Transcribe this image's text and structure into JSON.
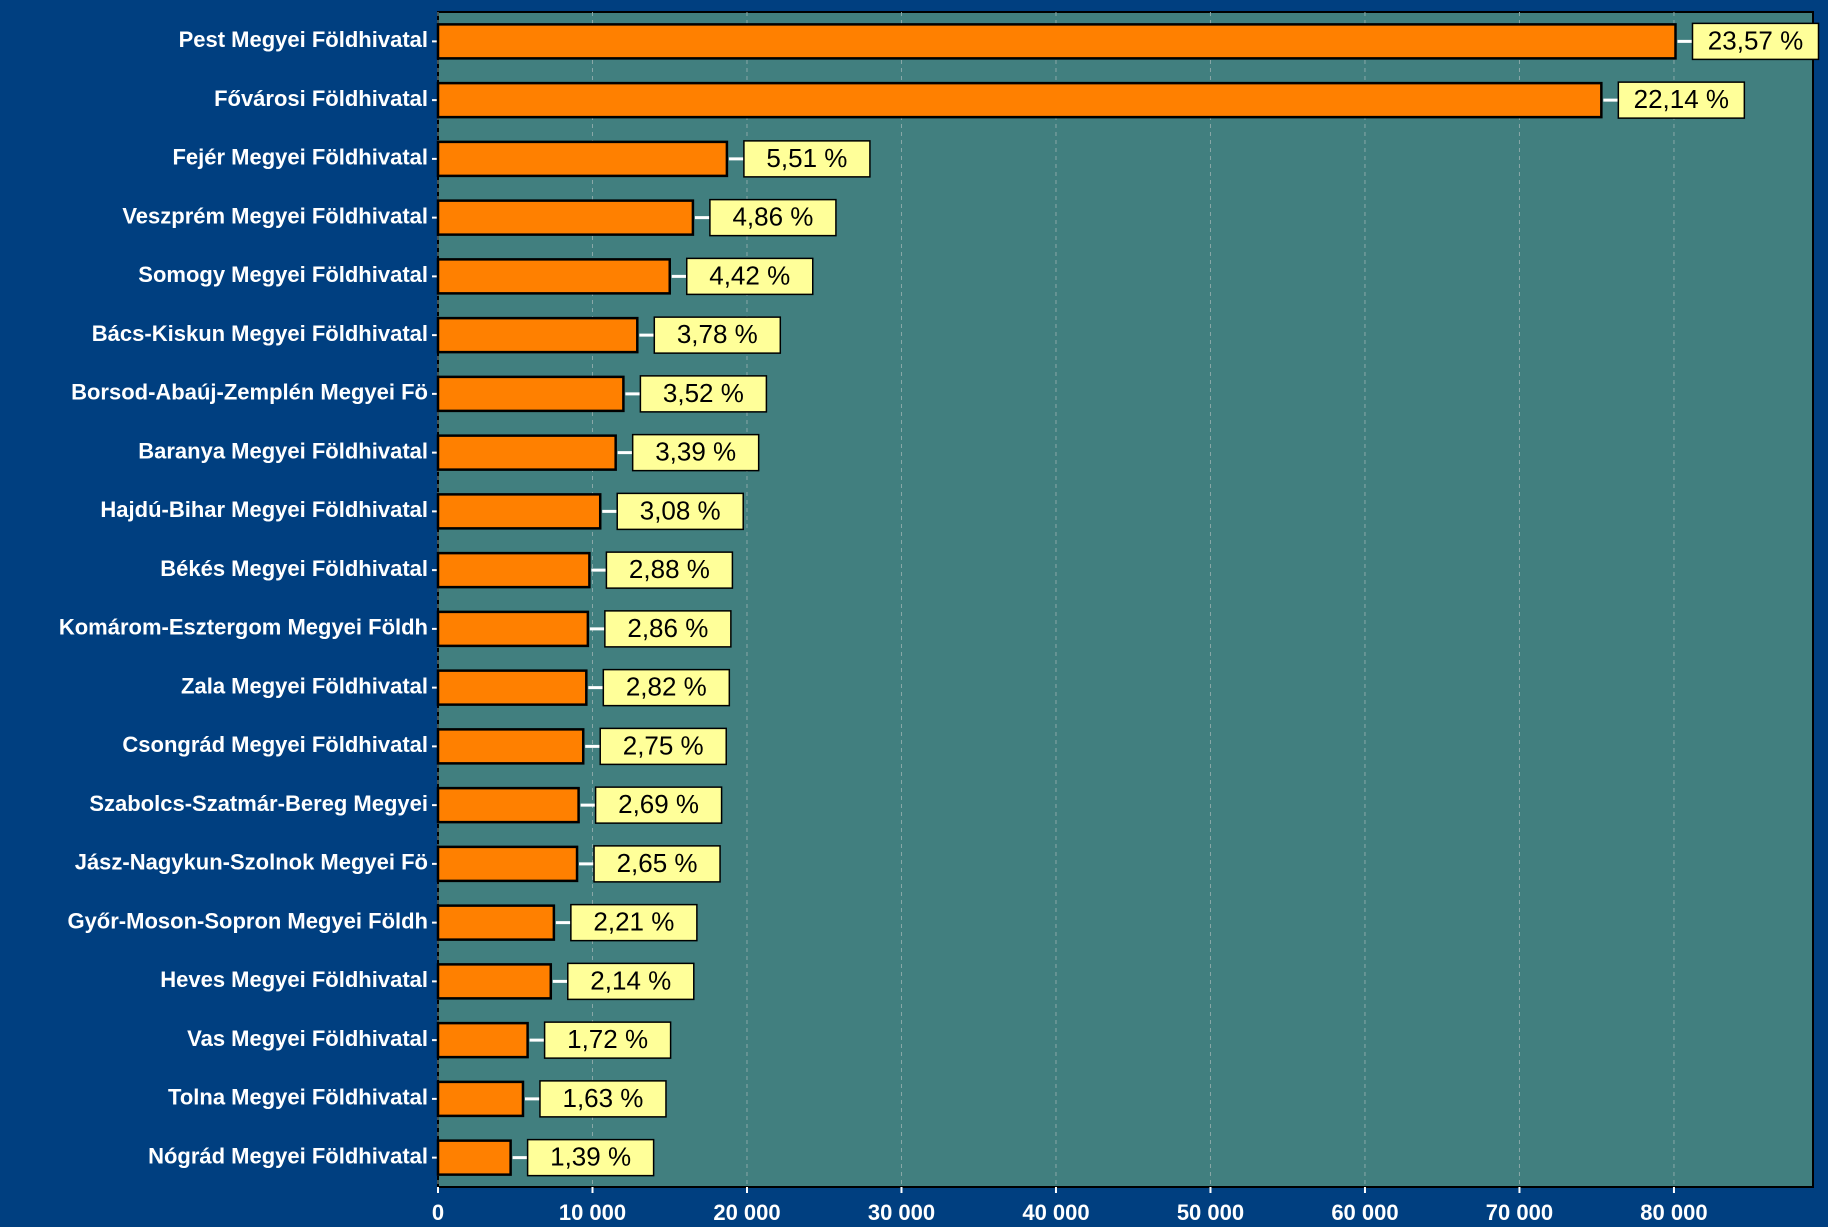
{
  "chart_data": {
    "type": "bar",
    "orientation": "horizontal",
    "categories": [
      "Pest Megyei Földhivatal",
      "Fővárosi Földhivatal",
      "Fejér Megyei Földhivatal",
      "Veszprém Megyei Földhivatal",
      "Somogy Megyei Földhivatal",
      "Bács-Kiskun Megyei Földhivatal",
      "Borsod-Abaúj-Zemplén Megyei Fö",
      "Baranya Megyei Földhivatal",
      "Hajdú-Bihar Megyei Földhivatal",
      "Békés Megyei Földhivatal",
      "Komárom-Esztergom Megyei Földh",
      "Zala Megyei Földhivatal",
      "Csongrád Megyei Földhivatal",
      "Szabolcs-Szatmár-Bereg Megyei ",
      "Jász-Nagykun-Szolnok Megyei Fö",
      "Győr-Moson-Sopron Megyei Földh",
      "Heves Megyei Földhivatal",
      "Vas Megyei Földhivatal",
      "Tolna Megyei Földhivatal",
      "Nógrád Megyei Földhivatal"
    ],
    "values": [
      80100,
      75300,
      18700,
      16500,
      15000,
      12900,
      12000,
      11500,
      10500,
      9800,
      9700,
      9600,
      9400,
      9100,
      9000,
      7500,
      7300,
      5800,
      5500,
      4700
    ],
    "value_labels": [
      "23,57 %",
      "22,14 %",
      "5,51 %",
      "4,86 %",
      "4,42 %",
      "3,78 %",
      "3,52 %",
      "3,39 %",
      "3,08 %",
      "2,88 %",
      "2,86 %",
      "2,82 %",
      "2,75 %",
      "2,69 %",
      "2,65 %",
      "2,21 %",
      "2,14 %",
      "1,72 %",
      "1,63 %",
      "1,39 %"
    ],
    "color": "#ff8000",
    "xlim": [
      0,
      89000
    ],
    "xticks": [
      0,
      {
        "value": 10000,
        "label": "10 000"
      },
      {
        "value": 20000,
        "label": "20 000"
      },
      {
        "value": 30000,
        "label": "30 000"
      },
      {
        "value": 40000,
        "label": "40 000"
      },
      {
        "value": 50000,
        "label": "50 000"
      },
      {
        "value": 60000,
        "label": "60 000"
      },
      {
        "value": 70000,
        "label": "70 000"
      },
      {
        "value": 80000,
        "label": "80 000"
      }
    ],
    "grid": true
  }
}
